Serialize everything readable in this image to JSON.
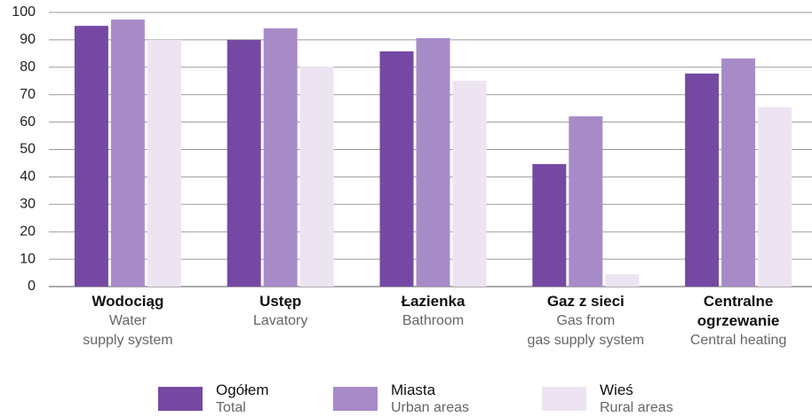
{
  "chart_data": {
    "type": "bar",
    "categories": [
      "Wodociąg",
      "Ustęp",
      "Łazienka",
      "Gaz z sieci",
      "Centralne ogrzewanie"
    ],
    "category_notes": [
      [
        "Water",
        "supply system"
      ],
      [
        "Lavatory"
      ],
      [
        "Bathroom"
      ],
      [
        "Gas from",
        "gas supply system"
      ],
      [
        "Central heating"
      ]
    ],
    "series": [
      {
        "name": "Ogółem",
        "name_en": "Total",
        "color": "#7549a3",
        "values": [
          95.1,
          90.0,
          85.8,
          44.7,
          77.7
        ]
      },
      {
        "name": "Miasta",
        "name_en": "Urban areas",
        "color": "#a78bc8",
        "values": [
          97.4,
          94.2,
          90.6,
          62.1,
          83.2
        ]
      },
      {
        "name": "Wieś",
        "name_en": "Rural areas",
        "color": "#ede4f2",
        "values": [
          90.0,
          80.3,
          75.1,
          4.5,
          65.4
        ]
      }
    ],
    "ylim": [
      0,
      100
    ],
    "yticks": [
      0,
      10,
      20,
      30,
      40,
      50,
      60,
      70,
      80,
      90,
      100
    ],
    "grid": true
  }
}
